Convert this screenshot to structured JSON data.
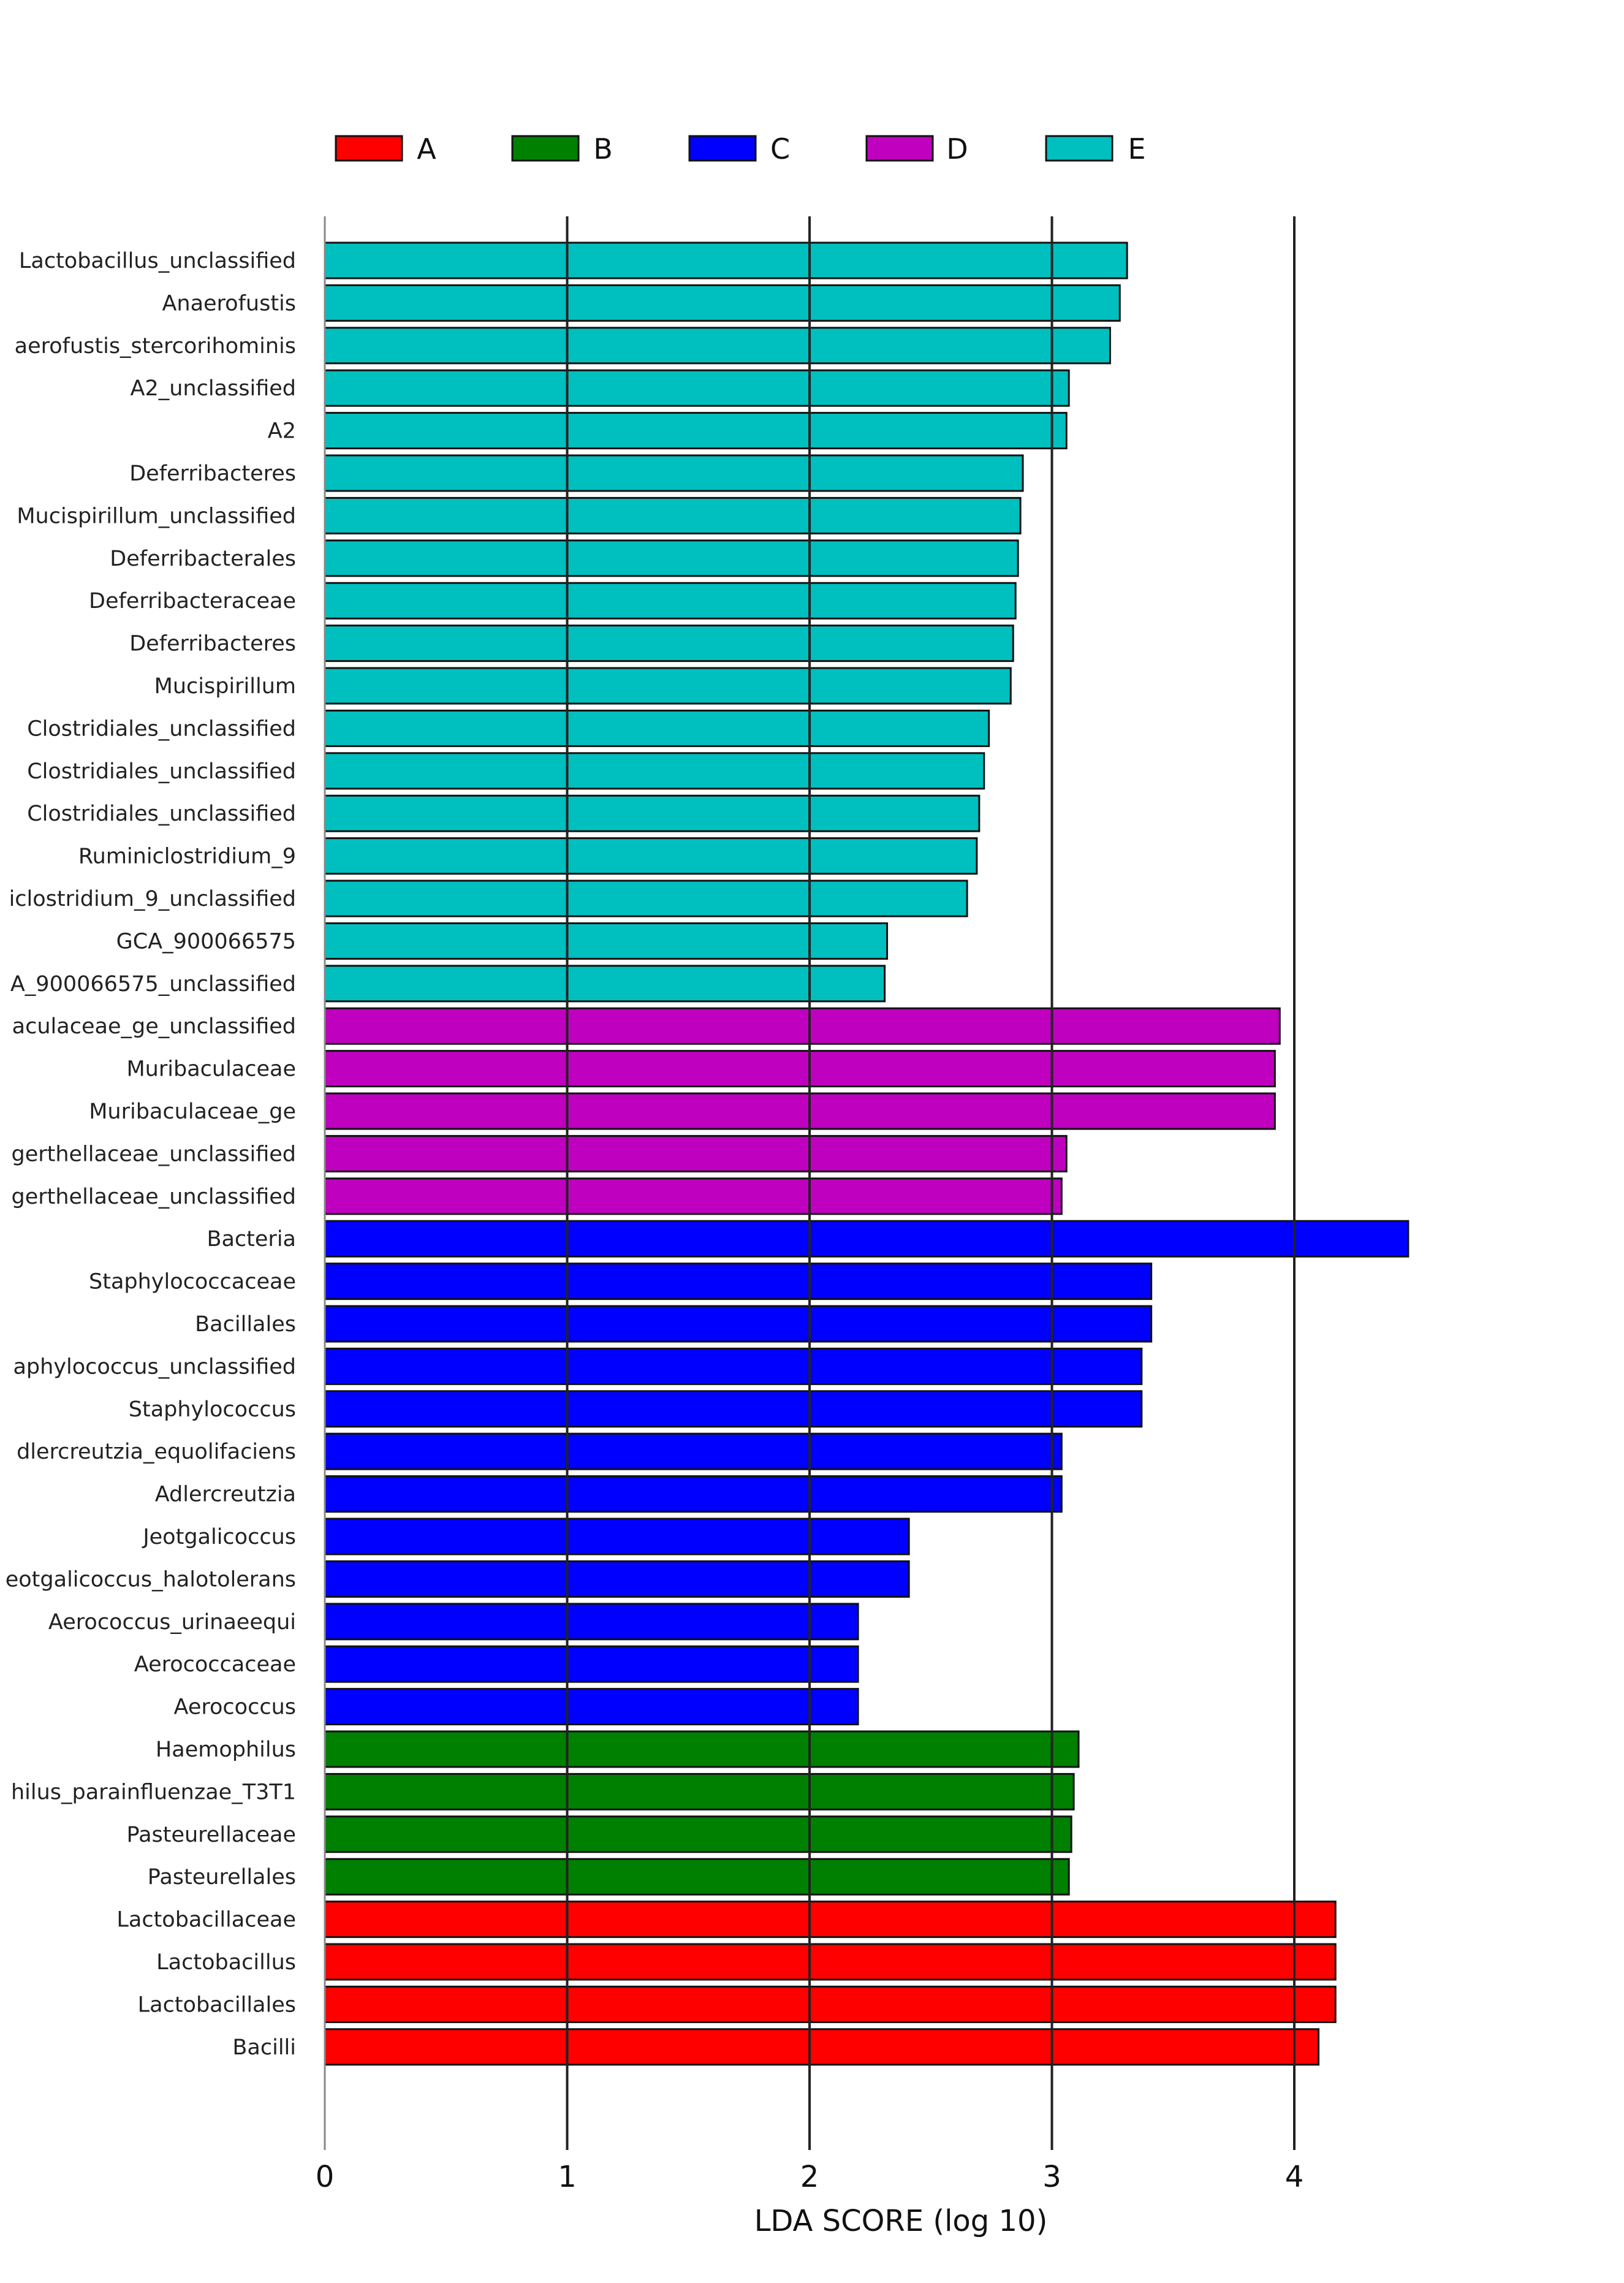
{
  "chart_data": {
    "type": "bar",
    "orientation": "horizontal",
    "title": "",
    "xlabel": "LDA SCORE (log 10)",
    "ylabel": "",
    "xlim": [
      0,
      4.6
    ],
    "xticks": [
      0,
      1,
      2,
      3,
      4
    ],
    "grid": true,
    "legend_position": "top",
    "legend": [
      {
        "name": "A",
        "color": "#ff0000"
      },
      {
        "name": "B",
        "color": "#008000"
      },
      {
        "name": "C",
        "color": "#0000ff"
      },
      {
        "name": "D",
        "color": "#bf00bf"
      },
      {
        "name": "E",
        "color": "#00bfbf"
      }
    ],
    "bars": [
      {
        "label": "Lactobacillus_unclassified",
        "group": "E",
        "value": 3.31
      },
      {
        "label": "Anaerofustis",
        "group": "E",
        "value": 3.28
      },
      {
        "label": "aerofustis_stercorihominis",
        "group": "E",
        "value": 3.24
      },
      {
        "label": "A2_unclassified",
        "group": "E",
        "value": 3.07
      },
      {
        "label": "A2",
        "group": "E",
        "value": 3.06
      },
      {
        "label": "Deferribacteres",
        "group": "E",
        "value": 2.88
      },
      {
        "label": "Mucispirillum_unclassified",
        "group": "E",
        "value": 2.87
      },
      {
        "label": "Deferribacterales",
        "group": "E",
        "value": 2.86
      },
      {
        "label": "Deferribacteraceae",
        "group": "E",
        "value": 2.85
      },
      {
        "label": "Deferribacteres",
        "group": "E",
        "value": 2.84
      },
      {
        "label": "Mucispirillum",
        "group": "E",
        "value": 2.83
      },
      {
        "label": "Clostridiales_unclassified",
        "group": "E",
        "value": 2.74
      },
      {
        "label": "Clostridiales_unclassified",
        "group": "E",
        "value": 2.72
      },
      {
        "label": "Clostridiales_unclassified",
        "group": "E",
        "value": 2.7
      },
      {
        "label": "Ruminiclostridium_9",
        "group": "E",
        "value": 2.69
      },
      {
        "label": "iclostridium_9_unclassified",
        "group": "E",
        "value": 2.65
      },
      {
        "label": "GCA_900066575",
        "group": "E",
        "value": 2.32
      },
      {
        "label": "A_900066575_unclassified",
        "group": "E",
        "value": 2.31
      },
      {
        "label": "aculaceae_ge_unclassified",
        "group": "D",
        "value": 3.94
      },
      {
        "label": "Muribaculaceae",
        "group": "D",
        "value": 3.92
      },
      {
        "label": "Muribaculaceae_ge",
        "group": "D",
        "value": 3.92
      },
      {
        "label": "gerthellaceae_unclassified",
        "group": "D",
        "value": 3.06
      },
      {
        "label": "gerthellaceae_unclassified",
        "group": "D",
        "value": 3.04
      },
      {
        "label": "Bacteria",
        "group": "C",
        "value": 4.47
      },
      {
        "label": "Staphylococcaceae",
        "group": "C",
        "value": 3.41
      },
      {
        "label": "Bacillales",
        "group": "C",
        "value": 3.41
      },
      {
        "label": "aphylococcus_unclassified",
        "group": "C",
        "value": 3.37
      },
      {
        "label": "Staphylococcus",
        "group": "C",
        "value": 3.37
      },
      {
        "label": "dlercreutzia_equolifaciens",
        "group": "C",
        "value": 3.04
      },
      {
        "label": "Adlercreutzia",
        "group": "C",
        "value": 3.04
      },
      {
        "label": "Jeotgalicoccus",
        "group": "C",
        "value": 2.41
      },
      {
        "label": "eotgalicoccus_halotolerans",
        "group": "C",
        "value": 2.41
      },
      {
        "label": "Aerococcus_urinaeequi",
        "group": "C",
        "value": 2.2
      },
      {
        "label": "Aerococcaceae",
        "group": "C",
        "value": 2.2
      },
      {
        "label": "Aerococcus",
        "group": "C",
        "value": 2.2
      },
      {
        "label": "Haemophilus",
        "group": "B",
        "value": 3.11
      },
      {
        "label": "hilus_parainfluenzae_T3T1",
        "group": "B",
        "value": 3.09
      },
      {
        "label": "Pasteurellaceae",
        "group": "B",
        "value": 3.08
      },
      {
        "label": "Pasteurellales",
        "group": "B",
        "value": 3.07
      },
      {
        "label": "Lactobacillaceae",
        "group": "A",
        "value": 4.17
      },
      {
        "label": "Lactobacillus",
        "group": "A",
        "value": 4.17
      },
      {
        "label": "Lactobacillales",
        "group": "A",
        "value": 4.17
      },
      {
        "label": "Bacilli",
        "group": "A",
        "value": 4.1
      }
    ]
  }
}
